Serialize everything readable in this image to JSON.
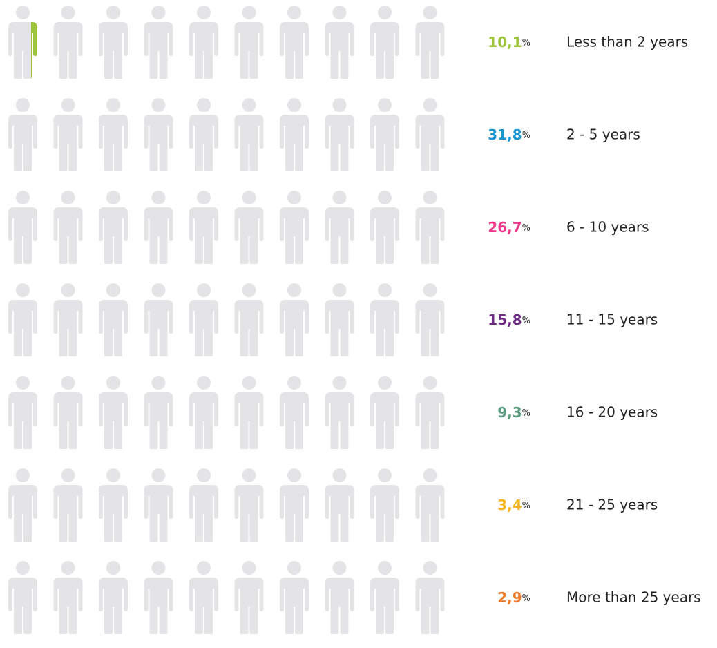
{
  "chart_data": {
    "type": "pictograph",
    "categories": [
      "Less than 2 years",
      "2 - 5 years",
      "6 - 10 years",
      "11 - 15 years",
      "16 - 20 years",
      "21 - 25 years",
      "More than 25 years"
    ],
    "values": [
      10.1,
      31.8,
      26.7,
      15.8,
      9.3,
      3.4,
      2.9
    ],
    "value_labels": [
      "10,1",
      "31,8",
      "26,7",
      "15,8",
      "9,3",
      "3,4",
      "2,9"
    ],
    "unit": "%",
    "colors": [
      "#9dc33b",
      "#1a95d3",
      "#ee3a8c",
      "#6e2b84",
      "#5c9c80",
      "#f9b51d",
      "#f07b2a"
    ]
  }
}
